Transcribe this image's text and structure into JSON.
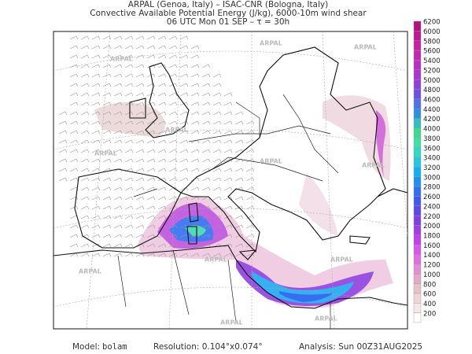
{
  "header": {
    "lines": [
      "ARPAL (Genoa, Italy)  –  ISAC-CNR (Bologna, Italy)",
      "Convective Available Potential Energy (J/kg), 6000-10m wind shear",
      "06 UTC Mon 01 SEP  –  τ = 30h"
    ]
  },
  "watermark": "ARPAL",
  "colorbar": {
    "levels": [
      200,
      400,
      600,
      800,
      1000,
      1200,
      1400,
      1600,
      1800,
      2000,
      2200,
      2400,
      2600,
      2800,
      3000,
      3200,
      3400,
      3600,
      3800,
      4000,
      4200,
      4400,
      4600,
      4800,
      5000,
      5200,
      5400,
      5600,
      5800,
      6000,
      6200
    ],
    "colors": [
      "#ffffff",
      "#f6e8e8",
      "#eed4d4",
      "#e8c0c8",
      "#e4a8c8",
      "#e090d0",
      "#e070e0",
      "#d858ec",
      "#c040ec",
      "#a040e4",
      "#8040e0",
      "#6048e4",
      "#4058ec",
      "#3070f0",
      "#2090f0",
      "#10b0f0",
      "#20c8e0",
      "#30d8c8",
      "#40e0a8",
      "#40d890",
      "#30c0c0",
      "#3090e0",
      "#5070e8",
      "#7050e0",
      "#9040d8",
      "#a838d0",
      "#b830c0",
      "#c028b0",
      "#c820a0",
      "#c01890",
      "#b01080"
    ]
  },
  "footer": {
    "model_label": "Model:",
    "model": "bolam",
    "resolution": "Resolution: 0.104°x0.074°",
    "analysis": "Analysis: Sun 00Z31AUG2025"
  }
}
